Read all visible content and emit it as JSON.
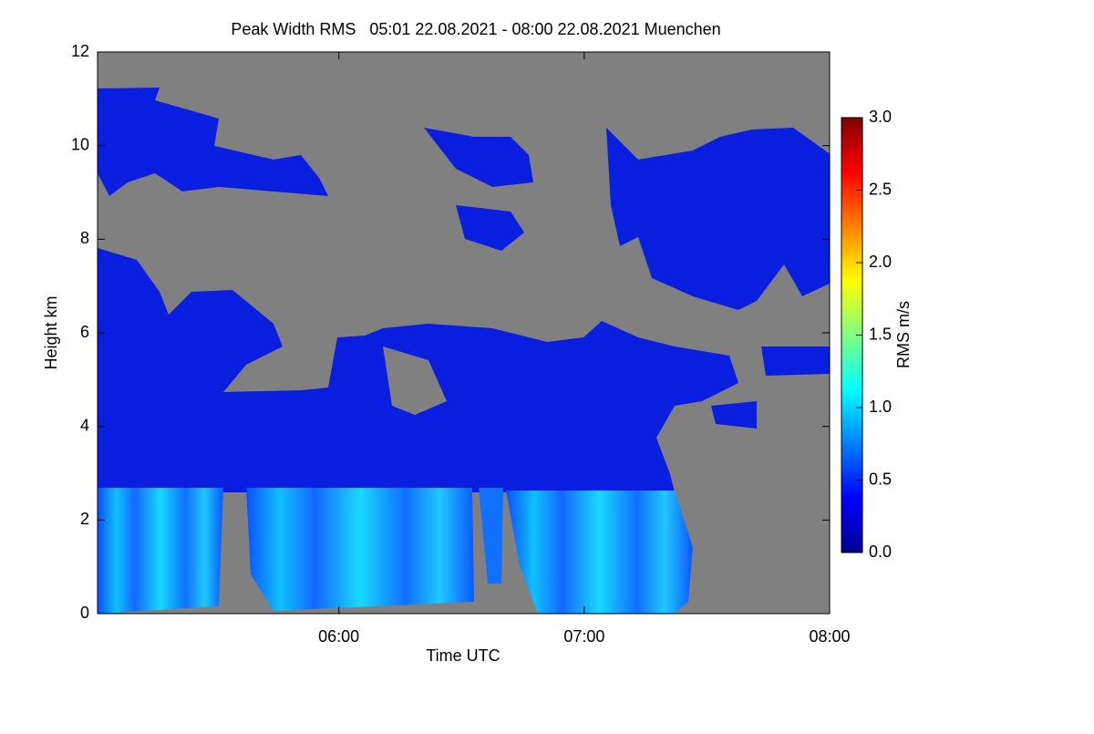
{
  "chart_data": {
    "type": "heatmap",
    "title": "Peak Width RMS   05:01 22.08.2021 - 08:00 22.08.2021 Muenchen",
    "xlabel": "Time UTC",
    "ylabel": "Height km",
    "xlim": [
      "05:01",
      "08:00"
    ],
    "xticks": [
      "06:00",
      "07:00",
      "08:00"
    ],
    "ylim": [
      0,
      12
    ],
    "yticks": [
      0,
      2,
      4,
      6,
      8,
      10,
      12
    ],
    "background": "#808080",
    "colorbar": {
      "label": "RMS m/s",
      "lim": [
        0,
        3
      ],
      "ticks": [
        {
          "value": 0,
          "label": "0.0"
        },
        {
          "value": 0.5,
          "label": "0.5"
        },
        {
          "value": 1,
          "label": "1.0"
        },
        {
          "value": 1.5,
          "label": "1.5"
        },
        {
          "value": 2,
          "label": "2.0"
        },
        {
          "value": 2.5,
          "label": "2.5"
        },
        {
          "value": 3,
          "label": "3.0"
        }
      ],
      "colors": [
        "#00008f",
        "#0000ff",
        "#0080ff",
        "#00ffff",
        "#80ff80",
        "#ffff00",
        "#ff8000",
        "#ff0000",
        "#800000"
      ]
    }
  }
}
